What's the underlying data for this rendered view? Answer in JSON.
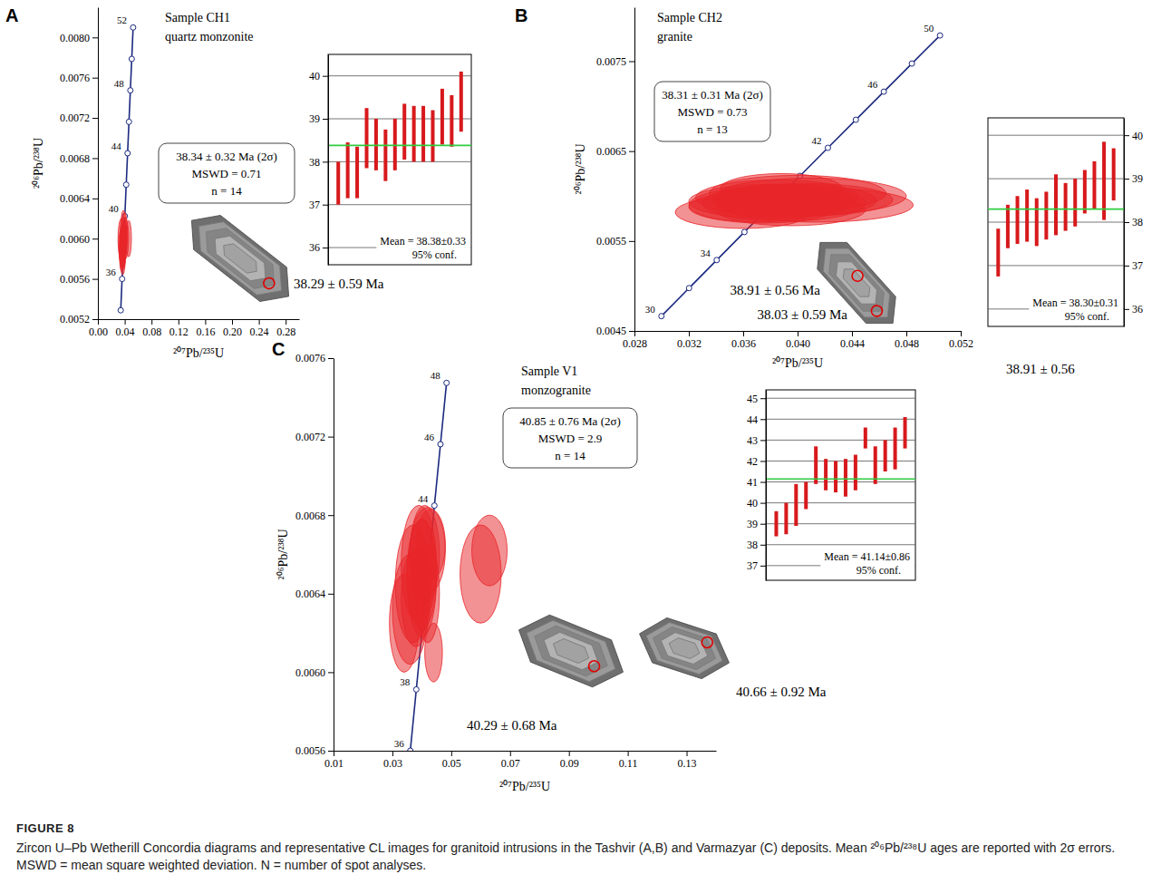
{
  "figure": {
    "label": "FIGURE 8",
    "caption": "Zircon U–Pb Wetherill Concordia diagrams and representative CL images for granitoid intrusions in the Tashvir (A,B) and Varmazyar (C) deposits. Mean ²⁰⁶Pb/²³⁸U ages are reported with 2σ errors. MSWD = mean square weighted deviation. N = number of spot analyses."
  },
  "chart_data": [
    {
      "type": "concordia",
      "panel": "A",
      "title": "Sample CH1",
      "subtitle": "quartz monzonite",
      "x_label": "²⁰⁷Pb/²³⁵U",
      "y_label": "²⁰⁶Pb/²³⁸U",
      "xlim": [
        0,
        0.3
      ],
      "xticks": [
        {
          "value": 0,
          "label": "0.00"
        },
        0.04,
        0.08,
        0.12,
        0.16,
        {
          "value": 0.2,
          "label": "0.20"
        },
        0.24,
        0.28
      ],
      "ylim": [
        0.0052,
        0.0083
      ],
      "yticks": [
        0.0052,
        0.0056,
        {
          "value": 0.006,
          "label": "0.0060"
        },
        0.0064,
        0.0068,
        0.0072,
        0.0076,
        {
          "value": 0.008,
          "label": "0.0080"
        }
      ],
      "stats": [
        "38.34 ± 0.32 Ma (2σ)",
        "MSWD = 0.71",
        "n = 14"
      ],
      "concordia": {
        "color": "#1c2a80",
        "x": [
          0.034052,
          0.036091,
          0.038133,
          0.04018,
          0.042231,
          0.044286,
          0.046345,
          0.048408,
          0.050476,
          0.052546
        ],
        "y": [
          0.0052882,
          0.0056001,
          0.0059122,
          0.0062243,
          0.0065366,
          0.0068489,
          0.0071613,
          0.0074738,
          0.0077864,
          0.0080991
        ],
        "age_labels": [
          null,
          36,
          null,
          40,
          null,
          44,
          null,
          48,
          null,
          52
        ]
      },
      "points": {
        "color": "#e8262a",
        "x": [
          0.036,
          0.037,
          0.038,
          0.035,
          0.039,
          0.037,
          0.038,
          0.04,
          0.036,
          0.039,
          0.038,
          0.041,
          0.037,
          0.046
        ],
        "y": [
          0.00585,
          0.0059,
          0.00595,
          0.006,
          0.00597,
          0.00588,
          0.00602,
          0.00605,
          0.00593,
          0.00598,
          0.00608,
          0.006,
          0.00582,
          0.006
        ],
        "x_err": [
          0.004,
          0.005,
          0.004,
          0.005,
          0.004,
          0.004,
          0.005,
          0.004,
          0.005,
          0.004,
          0.004,
          0.005,
          0.004,
          0.004
        ],
        "y_err": [
          0.00018,
          0.0002,
          0.00018,
          0.0002,
          0.00019,
          0.00018,
          0.0002,
          0.00021,
          0.00018,
          0.00019,
          0.0002,
          0.0002,
          0.00018,
          0.00018
        ]
      },
      "inset": {
        "type": "range",
        "color": "#d7191c",
        "grid": true,
        "ylim": [
          35.6,
          40.5
        ],
        "yticks": [
          36,
          37,
          38,
          39,
          40
        ],
        "values": [
          37.5,
          37.8,
          37.75,
          38.55,
          38.4,
          38.15,
          38.4,
          38.7,
          38.65,
          38.65,
          38.6,
          39.05,
          38.95,
          39.4
        ],
        "errors": [
          0.5,
          0.65,
          0.6,
          0.7,
          0.6,
          0.6,
          0.6,
          0.65,
          0.65,
          0.65,
          0.6,
          0.65,
          0.6,
          0.7
        ],
        "mean": 38.38,
        "mean_label": "Mean = 38.38±0.33",
        "conf_label": "95% conf."
      },
      "spot_labels": [
        "38.29 ± 0.59 Ma"
      ]
    },
    {
      "type": "concordia",
      "panel": "B",
      "title": "Sample CH2",
      "subtitle": "granite",
      "x_label": "²⁰⁷Pb/²³⁵U",
      "y_label": "²⁰⁶Pb/²³⁸U",
      "xlim": [
        0.028,
        0.052
      ],
      "xticks": [
        0.028,
        0.032,
        0.036,
        {
          "value": 0.04,
          "label": "0.040"
        },
        0.044,
        0.048,
        0.052
      ],
      "ylim": [
        0.0045,
        0.0081
      ],
      "yticks": [
        0.0045,
        0.0055,
        0.0065,
        0.0075
      ],
      "stats": [
        "38.31 ± 0.31 Ma (2σ)",
        "MSWD = 0.73",
        "n = 13"
      ],
      "concordia": {
        "color": "#1c2a80",
        "x": [
          0.029986,
          0.032017,
          0.034052,
          0.036091,
          0.038133,
          0.04018,
          0.042231,
          0.044286,
          0.046345,
          0.048408,
          0.050476
        ],
        "y": [
          0.0046646,
          0.0049763,
          0.0052882,
          0.0056001,
          0.0059122,
          0.0062243,
          0.0065366,
          0.0068489,
          0.0071613,
          0.0074738,
          0.0077864
        ],
        "age_labels": [
          30,
          null,
          34,
          null,
          null,
          null,
          42,
          null,
          46,
          null,
          50
        ]
      },
      "points": {
        "color": "#e8262a",
        "x": [
          0.0375,
          0.039,
          0.0405,
          0.037,
          0.0385,
          0.0395,
          0.041,
          0.038,
          0.04,
          0.036,
          0.0415,
          0.0388,
          0.0398
        ],
        "y": [
          0.00588,
          0.00592,
          0.00596,
          0.0059,
          0.00598,
          0.00585,
          0.006,
          0.00594,
          0.00603,
          0.00582,
          0.0059,
          0.00608,
          0.00595
        ],
        "x_err": [
          0.0055,
          0.006,
          0.0065,
          0.005,
          0.006,
          0.0055,
          0.007,
          0.006,
          0.0065,
          0.005,
          0.007,
          0.0045,
          0.006
        ],
        "y_err": [
          0.00018,
          0.0002,
          0.00018,
          0.00019,
          0.0002,
          0.00018,
          0.0002,
          0.00019,
          0.0002,
          0.00018,
          0.00019,
          0.00017,
          0.00018
        ]
      },
      "inset": {
        "type": "range",
        "color": "#d7191c",
        "grid": true,
        "ylim": [
          35.6,
          40.4
        ],
        "yticks": [
          36,
          37,
          38,
          39,
          40
        ],
        "values": [
          37.3,
          37.9,
          38.05,
          38.15,
          38.0,
          38.15,
          38.4,
          38.35,
          38.45,
          38.7,
          38.85,
          38.95,
          39.1
        ],
        "errors": [
          0.55,
          0.5,
          0.55,
          0.6,
          0.55,
          0.55,
          0.7,
          0.55,
          0.55,
          0.5,
          0.55,
          0.9,
          0.6
        ],
        "mean": 38.3,
        "mean_label": "Mean = 38.30±0.31",
        "conf_label": "95% conf."
      },
      "spot_labels": [
        "38.91 ± 0.56 Ma",
        "38.03 ± 0.59 Ma"
      ],
      "extra_label": "38.91 ± 0.56"
    },
    {
      "type": "concordia",
      "panel": "C",
      "title": "Sample V1",
      "subtitle": "monzogranite",
      "x_label": "²⁰⁷Pb/²³⁵U",
      "y_label": "²⁰⁶Pb/²³⁸U",
      "xlim": [
        0.01,
        0.14
      ],
      "xticks": [
        0.01,
        0.03,
        0.05,
        0.07,
        0.09,
        0.11,
        0.13
      ],
      "ylim": [
        0.0056,
        0.0076
      ],
      "yticks": [
        0.0056,
        {
          "value": 0.006,
          "label": "0.0060"
        },
        0.0064,
        0.0068,
        0.0072,
        0.0076
      ],
      "stats": [
        "40.85 ± 0.76 Ma (2σ)",
        "MSWD = 2.9",
        "n = 14"
      ],
      "concordia": {
        "color": "#1c2a80",
        "x": [
          0.036091,
          0.038133,
          0.04018,
          0.042231,
          0.044286,
          0.046345,
          0.048408
        ],
        "y": [
          0.0056001,
          0.0059122,
          0.0062243,
          0.0065366,
          0.0068489,
          0.0071613,
          0.0074738
        ],
        "age_labels": [
          36,
          38,
          null,
          null,
          44,
          46,
          48
        ]
      },
      "points": {
        "color": "#e8262a",
        "x": [
          0.034,
          0.036,
          0.038,
          0.037,
          0.04,
          0.039,
          0.041,
          0.042,
          0.043,
          0.04,
          0.044,
          0.042,
          0.06,
          0.063
        ],
        "y": [
          0.00625,
          0.00632,
          0.00638,
          0.00645,
          0.0065,
          0.00655,
          0.0066,
          0.00662,
          0.00665,
          0.00648,
          0.0061,
          0.0064,
          0.0065,
          0.00662
        ],
        "x_err": [
          0.005,
          0.006,
          0.005,
          0.006,
          0.005,
          0.006,
          0.005,
          0.006,
          0.005,
          0.005,
          0.003,
          0.004,
          0.007,
          0.006
        ],
        "y_err": [
          0.00025,
          0.00028,
          0.00025,
          0.0003,
          0.00028,
          0.0003,
          0.00025,
          0.00022,
          0.00018,
          0.0003,
          0.00015,
          0.00025,
          0.00025,
          0.00018
        ]
      },
      "inset": {
        "type": "range",
        "color": "#d7191c",
        "grid": true,
        "ylim": [
          36.3,
          45.4
        ],
        "yticks": [
          37,
          38,
          39,
          40,
          41,
          42,
          43,
          44,
          45
        ],
        "values": [
          39.0,
          39.25,
          39.9,
          40.35,
          41.8,
          41.35,
          41.25,
          41.2,
          41.45,
          43.1,
          41.8,
          42.25,
          42.6,
          43.35
        ],
        "errors": [
          0.6,
          0.75,
          1.0,
          0.65,
          0.9,
          0.75,
          0.75,
          0.9,
          0.85,
          0.5,
          0.9,
          0.75,
          1.0,
          0.75
        ],
        "mean": 41.14,
        "mean_label": "Mean = 41.14±0.86",
        "conf_label": "95% conf."
      },
      "spot_labels": [
        "40.29 ± 0.68 Ma",
        "40.66 ± 0.92 Ma"
      ]
    }
  ]
}
